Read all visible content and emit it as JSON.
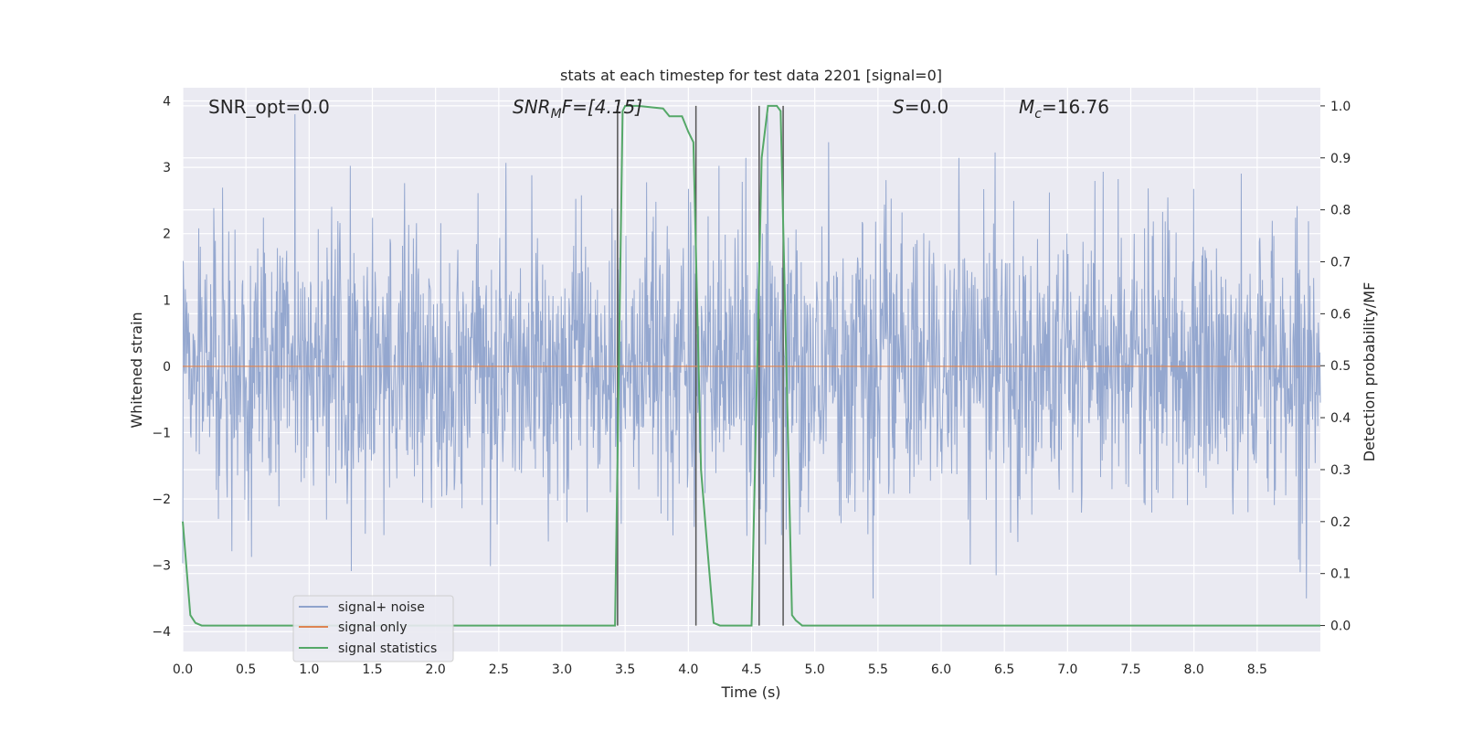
{
  "chart_data": {
    "type": "line",
    "title": "stats at each timestep for test data 2201 [signal=0]",
    "xlabel": "Time (s)",
    "ylabel_left": "Whitened strain",
    "ylabel_right": "Detection probability/MF",
    "xlim": [
      0.0,
      9.0
    ],
    "ylim_left": [
      -4.3,
      4.2
    ],
    "ylim_right": [
      -0.05,
      1.035
    ],
    "xticks": [
      "0.0",
      "0.5",
      "1.0",
      "1.5",
      "2.0",
      "2.5",
      "3.0",
      "3.5",
      "4.0",
      "4.5",
      "5.0",
      "5.5",
      "6.0",
      "6.5",
      "7.0",
      "7.5",
      "8.0",
      "8.5"
    ],
    "yticks_left": [
      "4",
      "3",
      "2",
      "1",
      "0",
      "−1",
      "−2",
      "−3",
      "−4"
    ],
    "yticks_right": [
      "1.0",
      "0.9",
      "0.8",
      "0.7",
      "0.6",
      "0.5",
      "0.4",
      "0.3",
      "0.2",
      "0.1",
      "0.0"
    ],
    "grid": true,
    "legend_position": "lower-left",
    "annotations": {
      "snr_opt": "SNR_opt=0.0",
      "snr_mf_main": "SNR",
      "snr_mf_sub": "M",
      "snr_mf_rest": "F=[4.15]",
      "s_main": "S",
      "s_rest": "=0.0",
      "mc_main": "M",
      "mc_sub": "c",
      "mc_rest": "=16.76"
    },
    "series": [
      {
        "name": "signal+ noise",
        "color": "#8fa3cc",
        "description_range": [
          -3.5,
          3.8
        ]
      },
      {
        "name": "signal only",
        "color": "#dd8452",
        "values_constant": 0.0
      },
      {
        "name": "signal statistics",
        "color": "#55a868",
        "axis": "right",
        "x": [
          0.0,
          0.06,
          0.1,
          0.15,
          3.42,
          3.48,
          3.5,
          3.6,
          3.8,
          3.85,
          3.95,
          4.0,
          4.04,
          4.1,
          4.15,
          4.2,
          4.25,
          4.5,
          4.58,
          4.63,
          4.7,
          4.73,
          4.82,
          4.85,
          4.9,
          9.0
        ],
        "y": [
          0.2,
          0.02,
          0.005,
          0.0,
          0.0,
          0.99,
          1.0,
          1.0,
          0.995,
          0.98,
          0.98,
          0.95,
          0.93,
          0.3,
          0.15,
          0.005,
          0.0,
          0.0,
          0.9,
          1.0,
          1.0,
          0.99,
          0.02,
          0.01,
          0.0,
          0.0
        ]
      }
    ],
    "vertical_lines": [
      3.44,
      4.06,
      4.56,
      4.75
    ]
  }
}
